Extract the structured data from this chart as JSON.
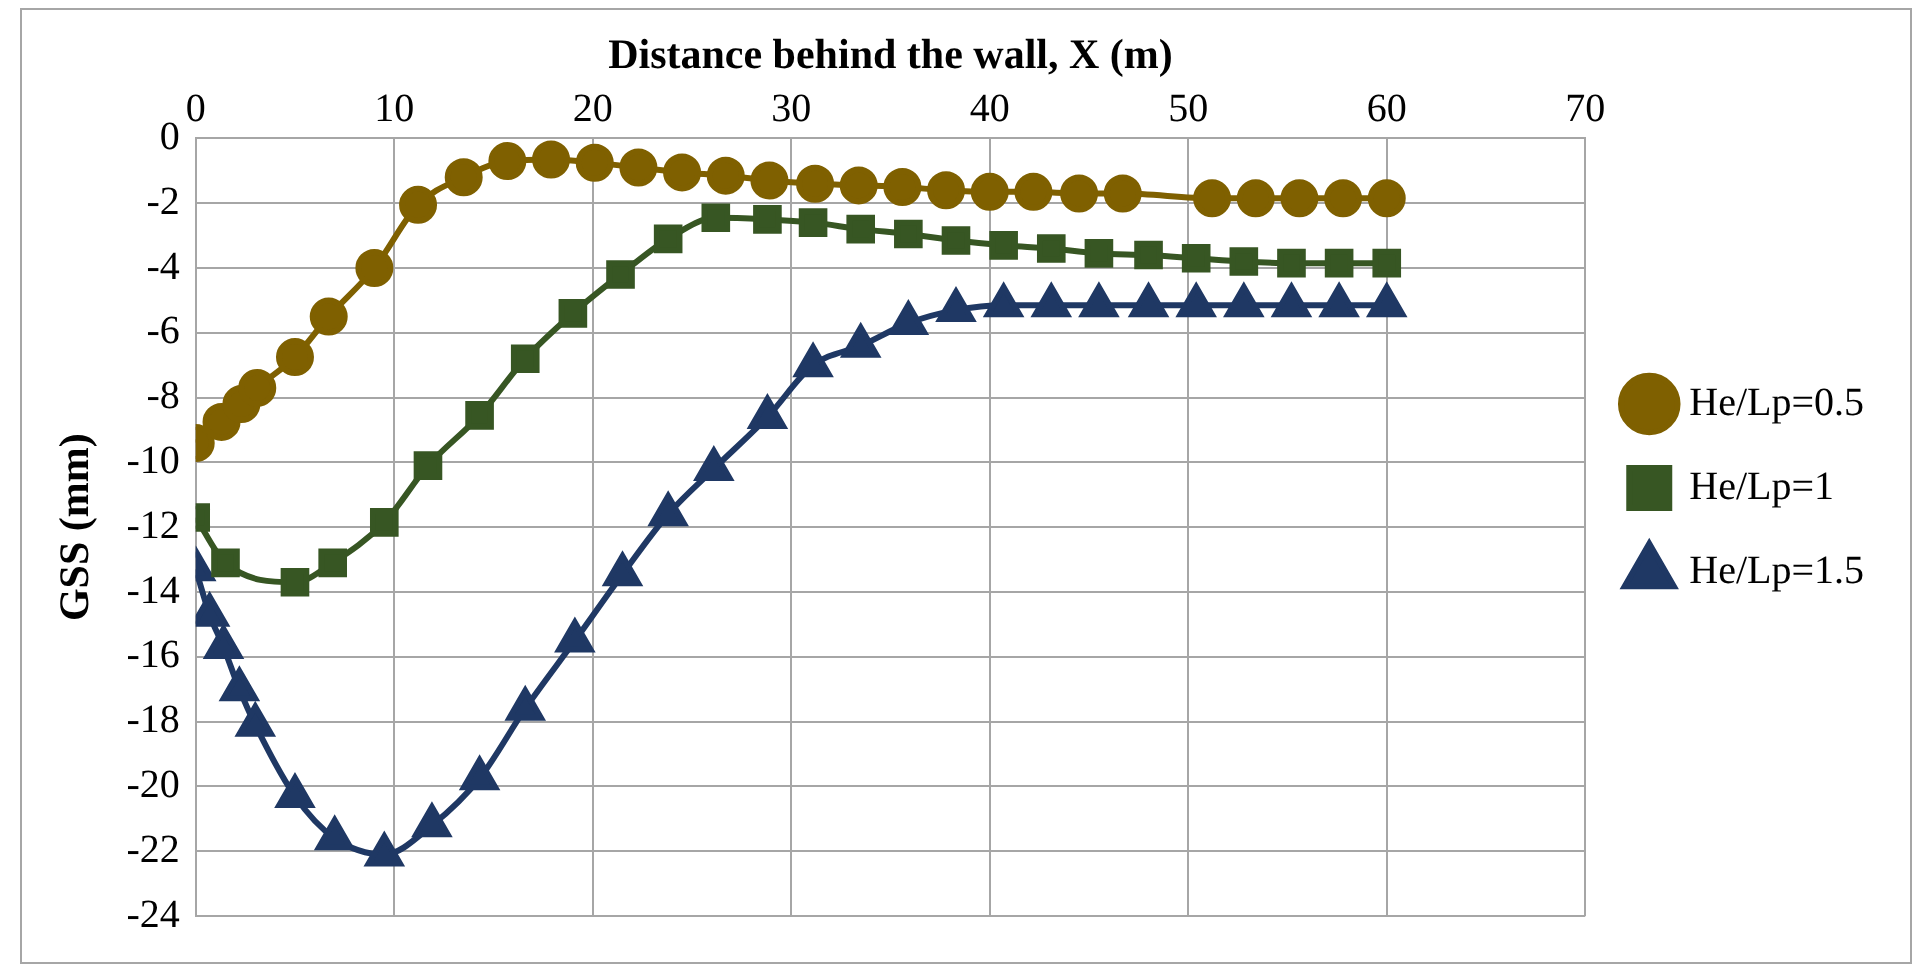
{
  "chart_data": {
    "type": "line",
    "xlabel": "Distance behind the wall, X (m)",
    "ylabel": "GSS (mm)",
    "xlim": [
      0,
      70
    ],
    "xticks": [
      0,
      10,
      20,
      30,
      40,
      50,
      60,
      70
    ],
    "ylim": [
      -24,
      0
    ],
    "yticks": [
      -24,
      -22,
      -20,
      -18,
      -16,
      -14,
      -12,
      -10,
      -8,
      -6,
      -4,
      -2,
      0
    ],
    "grid": true,
    "legend": "right",
    "series": [
      {
        "name": "He/Lp=0.5",
        "color": "#7f6000",
        "marker": "circle",
        "x": [
          0,
          1.3,
          2.3,
          3.1,
          5,
          6.7,
          9,
          11.2,
          13.5,
          15.7,
          17.9,
          20.1,
          22.3,
          24.5,
          26.7,
          28.9,
          31.2,
          33.4,
          35.6,
          37.8,
          40,
          42.2,
          44.5,
          46.7,
          51.2,
          53.4,
          55.6,
          57.8,
          60
        ],
        "values": [
          -9.4,
          -8.75,
          -8.2,
          -7.7,
          -6.75,
          -5.5,
          -4,
          -2.05,
          -1.2,
          -0.7,
          -0.65,
          -0.75,
          -0.9,
          -1.05,
          -1.15,
          -1.3,
          -1.4,
          -1.45,
          -1.5,
          -1.6,
          -1.65,
          -1.65,
          -1.7,
          -1.7,
          -1.85,
          -1.85,
          -1.85,
          -1.85,
          -1.85
        ]
      },
      {
        "name": "He/Lp=1",
        "color": "#375623",
        "marker": "square",
        "x": [
          0,
          1.5,
          5,
          6.9,
          9.5,
          11.7,
          14.3,
          16.6,
          19,
          21.4,
          23.8,
          26.2,
          28.8,
          31.1,
          33.5,
          35.9,
          38.3,
          40.7,
          43.1,
          45.5,
          48,
          50.4,
          52.8,
          55.2,
          57.6,
          60
        ],
        "values": [
          -11.7,
          -13.1,
          -13.7,
          -13.1,
          -11.85,
          -10.1,
          -8.55,
          -6.8,
          -5.4,
          -4.2,
          -3.1,
          -2.45,
          -2.5,
          -2.6,
          -2.8,
          -2.95,
          -3.15,
          -3.3,
          -3.4,
          -3.55,
          -3.6,
          -3.7,
          -3.8,
          -3.85,
          -3.85,
          -3.85
        ]
      },
      {
        "name": "He/Lp=1.5",
        "color": "#1f3864",
        "marker": "triangle",
        "x": [
          0,
          0.7,
          1.4,
          2.2,
          3,
          5,
          7,
          9.5,
          11.9,
          14.3,
          16.6,
          19.1,
          21.5,
          23.8,
          26.1,
          28.8,
          31.1,
          33.5,
          35.9,
          38.3,
          40.7,
          43.1,
          45.5,
          48,
          50.4,
          52.8,
          55.2,
          57.6,
          60
        ],
        "values": [
          -13.3,
          -14.7,
          -15.7,
          -17,
          -18.1,
          -20.3,
          -21.6,
          -22.1,
          -21.2,
          -19.75,
          -17.6,
          -15.5,
          -13.45,
          -11.6,
          -10.2,
          -8.6,
          -7,
          -6.4,
          -5.7,
          -5.3,
          -5.15,
          -5.15,
          -5.15,
          -5.15,
          -5.15,
          -5.15,
          -5.15,
          -5.15,
          -5.15
        ]
      }
    ]
  }
}
